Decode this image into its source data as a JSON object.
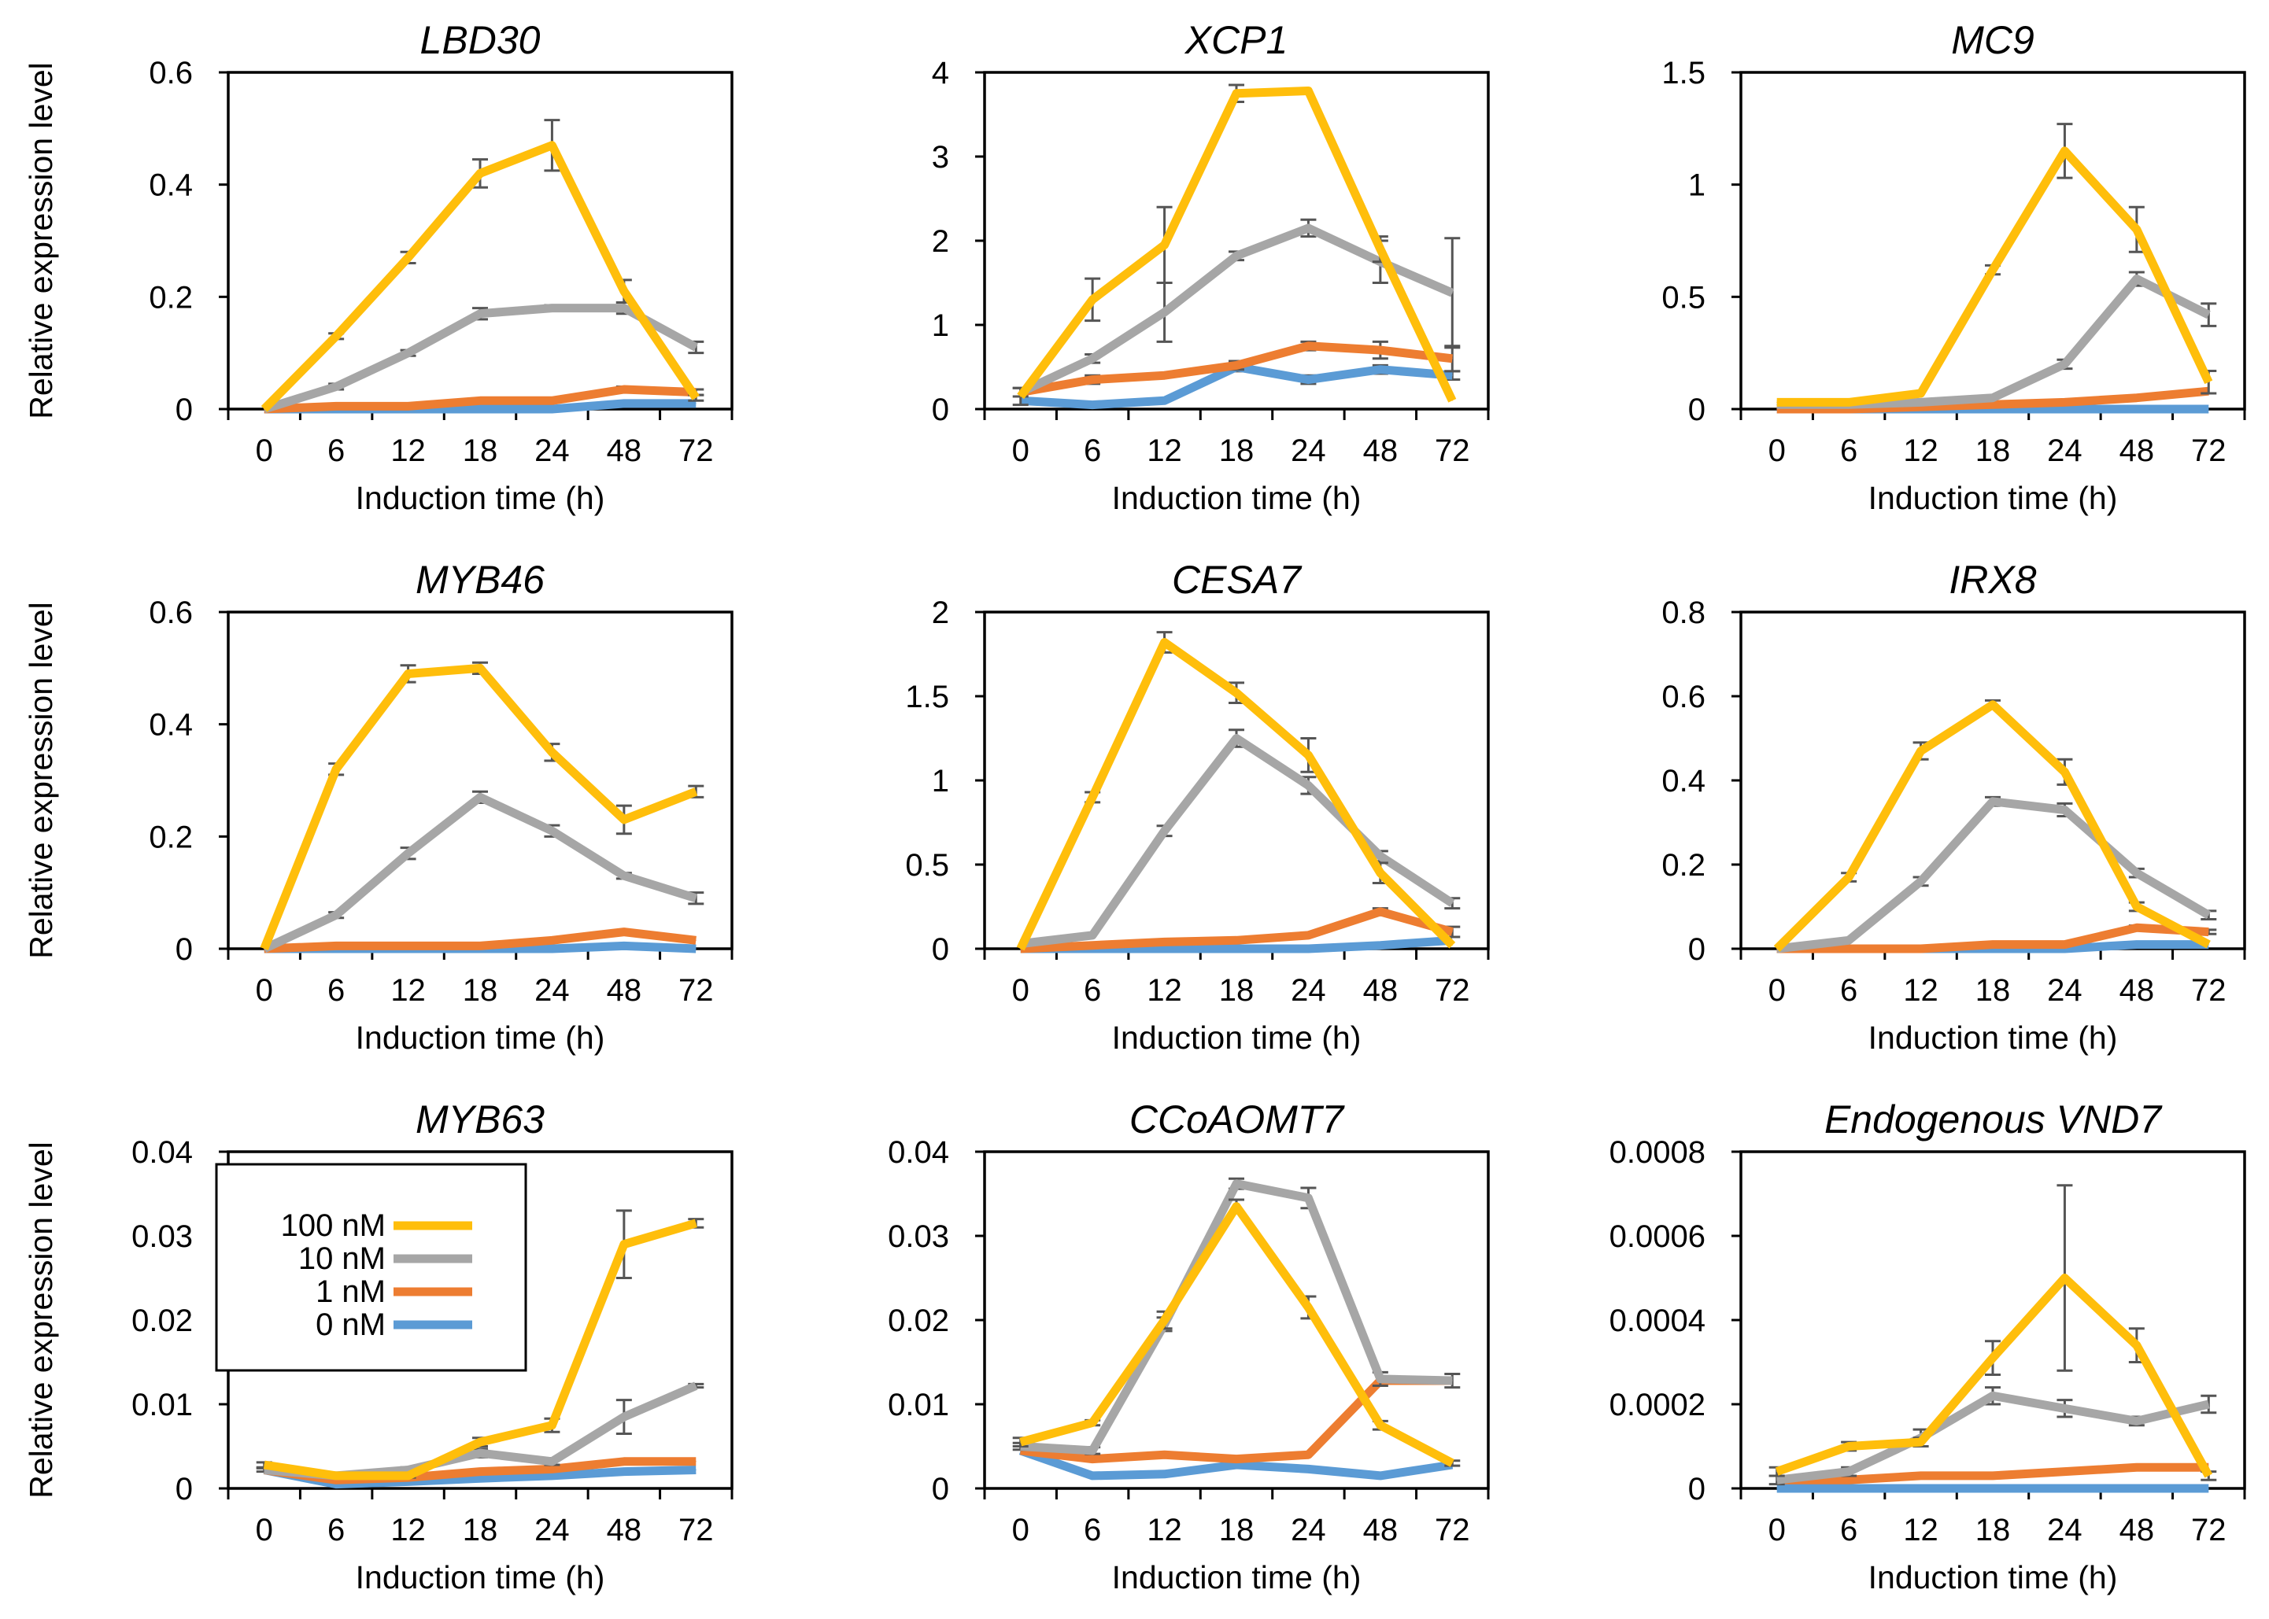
{
  "figure": {
    "ylabel": "Relative expression level",
    "xlabel": "Induction time (h)"
  },
  "legend": {
    "entries": [
      {
        "label": "100 nM",
        "color": "#FFBE0B"
      },
      {
        "label": "10 nM",
        "color": "#A6A6A6"
      },
      {
        "label": "1 nM",
        "color": "#ED7D31"
      },
      {
        "label": "0 nM",
        "color": "#5B9BD5"
      }
    ]
  },
  "chart_data": [
    {
      "type": "line",
      "title": "LBD30",
      "xlabel": "Induction time (h)",
      "ylabel": "Relative expression level",
      "categories": [
        "0",
        "6",
        "12",
        "18",
        "24",
        "48",
        "72"
      ],
      "ylim": [
        0,
        0.6
      ],
      "yticks": [
        0,
        0.2,
        0.4,
        0.6
      ],
      "ytick_labels": [
        "0",
        "0.2",
        "0.4",
        "0.6"
      ],
      "series": [
        {
          "name": "100 nM",
          "color": "#FFBE0B",
          "values": [
            0,
            0.13,
            0.27,
            0.42,
            0.47,
            0.21,
            0.02
          ],
          "errors": [
            0,
            0.005,
            0.01,
            0.025,
            0.045,
            0.02,
            0.005
          ]
        },
        {
          "name": "10 nM",
          "color": "#A6A6A6",
          "values": [
            0,
            0.04,
            0.1,
            0.17,
            0.18,
            0.18,
            0.11
          ],
          "errors": [
            0,
            0.005,
            0.005,
            0.01,
            0.005,
            0.01,
            0.01
          ]
        },
        {
          "name": "1 nM",
          "color": "#ED7D31",
          "values": [
            0,
            0.005,
            0.005,
            0.015,
            0.015,
            0.035,
            0.03
          ],
          "errors": [
            0,
            0,
            0,
            0,
            0,
            0.005,
            0.005
          ]
        },
        {
          "name": "0 nM",
          "color": "#5B9BD5",
          "values": [
            0,
            0,
            0,
            0,
            0,
            0.01,
            0.01
          ],
          "errors": [
            0,
            0,
            0,
            0,
            0,
            0,
            0
          ]
        }
      ]
    },
    {
      "type": "line",
      "title": "XCP1",
      "xlabel": "Induction time (h)",
      "ylabel": "",
      "categories": [
        "0",
        "6",
        "12",
        "18",
        "24",
        "48",
        "72"
      ],
      "ylim": [
        0,
        4
      ],
      "yticks": [
        0,
        1,
        2,
        3,
        4
      ],
      "ytick_labels": [
        "0",
        "1",
        "2",
        "3",
        "4"
      ],
      "series": [
        {
          "name": "100 nM",
          "color": "#FFBE0B",
          "values": [
            0.15,
            1.3,
            1.95,
            3.75,
            3.78,
            1.9,
            0.1
          ],
          "errors": [
            0.1,
            0.25,
            0.45,
            0.1,
            0,
            0.15,
            0
          ]
        },
        {
          "name": "10 nM",
          "color": "#A6A6A6",
          "values": [
            0.2,
            0.6,
            1.15,
            1.82,
            2.15,
            1.75,
            1.38
          ],
          "errors": [
            0.05,
            0.05,
            0.35,
            0.05,
            0.1,
            0.25,
            0.65
          ]
        },
        {
          "name": "1 nM",
          "color": "#ED7D31",
          "values": [
            0.2,
            0.35,
            0.4,
            0.52,
            0.75,
            0.7,
            0.6
          ],
          "errors": [
            0,
            0.05,
            0,
            0.05,
            0.05,
            0.1,
            0.15
          ]
        },
        {
          "name": "0 nM",
          "color": "#5B9BD5",
          "values": [
            0.1,
            0.05,
            0.1,
            0.5,
            0.35,
            0.47,
            0.4
          ],
          "errors": [
            0,
            0,
            0,
            0.05,
            0.05,
            0.05,
            0.05
          ]
        }
      ]
    },
    {
      "type": "line",
      "title": "MC9",
      "xlabel": "Induction time (h)",
      "ylabel": "",
      "categories": [
        "0",
        "6",
        "12",
        "18",
        "24",
        "48",
        "72"
      ],
      "ylim": [
        0,
        1.5
      ],
      "yticks": [
        0,
        0.5,
        1,
        1.5
      ],
      "ytick_labels": [
        "0",
        "0.5",
        "1",
        "1.5"
      ],
      "series": [
        {
          "name": "100 nM",
          "color": "#FFBE0B",
          "values": [
            0.03,
            0.03,
            0.07,
            0.62,
            1.15,
            0.8,
            0.12
          ],
          "errors": [
            0,
            0,
            0,
            0.02,
            0.12,
            0.1,
            0.05
          ]
        },
        {
          "name": "10 nM",
          "color": "#A6A6A6",
          "values": [
            0.02,
            0.02,
            0.03,
            0.05,
            0.2,
            0.58,
            0.42
          ],
          "errors": [
            0,
            0,
            0,
            0,
            0.02,
            0.03,
            0.05
          ]
        },
        {
          "name": "1 nM",
          "color": "#ED7D31",
          "values": [
            0,
            0,
            0.01,
            0.02,
            0.03,
            0.05,
            0.08
          ],
          "errors": [
            0,
            0,
            0,
            0,
            0,
            0,
            0
          ]
        },
        {
          "name": "0 nM",
          "color": "#5B9BD5",
          "values": [
            0,
            0,
            0,
            0,
            0,
            0,
            0
          ],
          "errors": [
            0,
            0,
            0,
            0,
            0,
            0,
            0
          ]
        }
      ]
    },
    {
      "type": "line",
      "title": "MYB46",
      "xlabel": "Induction time (h)",
      "ylabel": "Relative expression level",
      "categories": [
        "0",
        "6",
        "12",
        "18",
        "24",
        "48",
        "72"
      ],
      "ylim": [
        0,
        0.6
      ],
      "yticks": [
        0,
        0.2,
        0.4,
        0.6
      ],
      "ytick_labels": [
        "0",
        "0.2",
        "0.4",
        "0.6"
      ],
      "series": [
        {
          "name": "100 nM",
          "color": "#FFBE0B",
          "values": [
            0,
            0.32,
            0.49,
            0.5,
            0.35,
            0.23,
            0.28
          ],
          "errors": [
            0,
            0.01,
            0.015,
            0.01,
            0.015,
            0.025,
            0.01
          ]
        },
        {
          "name": "10 nM",
          "color": "#A6A6A6",
          "values": [
            0,
            0.06,
            0.17,
            0.27,
            0.21,
            0.13,
            0.09
          ],
          "errors": [
            0,
            0.005,
            0.01,
            0.01,
            0.01,
            0.005,
            0.01
          ]
        },
        {
          "name": "1 nM",
          "color": "#ED7D31",
          "values": [
            0,
            0.005,
            0.005,
            0.005,
            0.015,
            0.03,
            0.015
          ],
          "errors": [
            0,
            0,
            0,
            0,
            0,
            0,
            0
          ]
        },
        {
          "name": "0 nM",
          "color": "#5B9BD5",
          "values": [
            0,
            0,
            0,
            0,
            0,
            0.005,
            0
          ],
          "errors": [
            0,
            0,
            0,
            0,
            0,
            0,
            0
          ]
        }
      ]
    },
    {
      "type": "line",
      "title": "CESA7",
      "xlabel": "Induction time (h)",
      "ylabel": "",
      "categories": [
        "0",
        "6",
        "12",
        "18",
        "24",
        "48",
        "72"
      ],
      "ylim": [
        0,
        2
      ],
      "yticks": [
        0,
        0.5,
        1,
        1.5,
        2
      ],
      "ytick_labels": [
        "0",
        "0.5",
        "1",
        "1.5",
        "2"
      ],
      "series": [
        {
          "name": "100 nM",
          "color": "#FFBE0B",
          "values": [
            0,
            0.9,
            1.82,
            1.52,
            1.15,
            0.45,
            0.02
          ],
          "errors": [
            0,
            0.03,
            0.06,
            0.06,
            0.1,
            0.06,
            0
          ]
        },
        {
          "name": "10 nM",
          "color": "#A6A6A6",
          "values": [
            0.03,
            0.08,
            0.7,
            1.25,
            0.97,
            0.55,
            0.27
          ],
          "errors": [
            0,
            0,
            0.03,
            0.05,
            0.05,
            0.03,
            0.03
          ]
        },
        {
          "name": "1 nM",
          "color": "#ED7D31",
          "values": [
            0,
            0.02,
            0.04,
            0.05,
            0.08,
            0.22,
            0.1
          ],
          "errors": [
            0,
            0,
            0,
            0,
            0,
            0.02,
            0.03
          ]
        },
        {
          "name": "0 nM",
          "color": "#5B9BD5",
          "values": [
            0,
            0,
            0,
            0,
            0,
            0.02,
            0.05
          ],
          "errors": [
            0,
            0,
            0,
            0,
            0,
            0,
            0
          ]
        }
      ]
    },
    {
      "type": "line",
      "title": "IRX8",
      "xlabel": "Induction time (h)",
      "ylabel": "",
      "categories": [
        "0",
        "6",
        "12",
        "18",
        "24",
        "48",
        "72"
      ],
      "ylim": [
        0,
        0.8
      ],
      "yticks": [
        0,
        0.2,
        0.4,
        0.6,
        0.8
      ],
      "ytick_labels": [
        "0",
        "0.2",
        "0.4",
        "0.6",
        "0.8"
      ],
      "series": [
        {
          "name": "100 nM",
          "color": "#FFBE0B",
          "values": [
            0,
            0.17,
            0.47,
            0.58,
            0.42,
            0.1,
            0.01
          ],
          "errors": [
            0,
            0.01,
            0.02,
            0.01,
            0.03,
            0.01,
            0
          ]
        },
        {
          "name": "10 nM",
          "color": "#A6A6A6",
          "values": [
            0,
            0.02,
            0.16,
            0.35,
            0.33,
            0.18,
            0.08
          ],
          "errors": [
            0,
            0,
            0.01,
            0.01,
            0.015,
            0.01,
            0.01
          ]
        },
        {
          "name": "1 nM",
          "color": "#ED7D31",
          "values": [
            0,
            0,
            0,
            0.01,
            0.01,
            0.05,
            0.04
          ],
          "errors": [
            0,
            0,
            0,
            0,
            0,
            0.005,
            0.005
          ]
        },
        {
          "name": "0 nM",
          "color": "#5B9BD5",
          "values": [
            0,
            0,
            0,
            0,
            0,
            0.01,
            0.01
          ],
          "errors": [
            0,
            0,
            0,
            0,
            0,
            0,
            0
          ]
        }
      ]
    },
    {
      "type": "line",
      "title": "MYB63",
      "xlabel": "Induction time (h)",
      "ylabel": "Relative expression level",
      "categories": [
        "0",
        "6",
        "12",
        "18",
        "24",
        "48",
        "72"
      ],
      "ylim": [
        0,
        0.04
      ],
      "yticks": [
        0,
        0.01,
        0.02,
        0.03,
        0.04
      ],
      "ytick_labels": [
        "0",
        "0.01",
        "0.02",
        "0.03",
        "0.04"
      ],
      "series": [
        {
          "name": "100 nM",
          "color": "#FFBE0B",
          "values": [
            0.0028,
            0.0015,
            0.0015,
            0.0055,
            0.0075,
            0.029,
            0.0315
          ],
          "errors": [
            0.0003,
            0.0002,
            0.0002,
            0.0005,
            0.0008,
            0.004,
            0.0005
          ]
        },
        {
          "name": "10 nM",
          "color": "#A6A6A6",
          "values": [
            0.0022,
            0.0015,
            0.0022,
            0.0042,
            0.0032,
            0.0085,
            0.0122
          ],
          "errors": [
            0.0002,
            0.0002,
            0.0003,
            0.0005,
            0.0004,
            0.002,
            0.0002
          ]
        },
        {
          "name": "1 nM",
          "color": "#ED7D31",
          "values": [
            0.0022,
            0.001,
            0.0013,
            0.002,
            0.0023,
            0.0032,
            0.0032
          ],
          "errors": [
            0,
            0,
            0,
            0,
            0,
            0,
            0
          ]
        },
        {
          "name": "0 nM",
          "color": "#5B9BD5",
          "values": [
            0.0022,
            0.0005,
            0.0008,
            0.0012,
            0.0015,
            0.002,
            0.0022
          ],
          "errors": [
            0,
            0,
            0,
            0,
            0,
            0,
            0
          ]
        }
      ]
    },
    {
      "type": "line",
      "title": "CCoAOMT7",
      "xlabel": "Induction time (h)",
      "ylabel": "",
      "categories": [
        "0",
        "6",
        "12",
        "18",
        "24",
        "48",
        "72"
      ],
      "ylim": [
        0,
        0.04
      ],
      "yticks": [
        0,
        0.01,
        0.02,
        0.03,
        0.04
      ],
      "ytick_labels": [
        "0",
        "0.01",
        "0.02",
        "0.03",
        "0.04"
      ],
      "series": [
        {
          "name": "100 nM",
          "color": "#FFBE0B",
          "values": [
            0.0055,
            0.0078,
            0.02,
            0.0335,
            0.0215,
            0.0075,
            0.003
          ],
          "errors": [
            0.0005,
            0.0003,
            0.001,
            0.0008,
            0.0013,
            0.0005,
            0.0003
          ]
        },
        {
          "name": "10 nM",
          "color": "#A6A6A6",
          "values": [
            0.005,
            0.0045,
            0.0195,
            0.0362,
            0.0345,
            0.013,
            0.0128
          ],
          "errors": [
            0.0004,
            0.0004,
            0.0008,
            0.0006,
            0.0012,
            0.0008,
            0.0008
          ]
        },
        {
          "name": "1 nM",
          "color": "#ED7D31",
          "values": [
            0.0045,
            0.0035,
            0.004,
            0.0035,
            0.004,
            0.0128,
            0.0128
          ],
          "errors": [
            0,
            0,
            0,
            0,
            0,
            0,
            0
          ]
        },
        {
          "name": "0 nM",
          "color": "#5B9BD5",
          "values": [
            0.0045,
            0.0015,
            0.0017,
            0.0028,
            0.0023,
            0.0015,
            0.0028
          ],
          "errors": [
            0,
            0,
            0,
            0,
            0,
            0,
            0
          ]
        }
      ]
    },
    {
      "type": "line",
      "title": "Endogenous VND7",
      "xlabel": "Induction time (h)",
      "ylabel": "",
      "categories": [
        "0",
        "6",
        "12",
        "18",
        "24",
        "48",
        "72"
      ],
      "ylim": [
        0,
        0.0008
      ],
      "yticks": [
        0,
        0.0002,
        0.0004,
        0.0006,
        0.0008
      ],
      "ytick_labels": [
        "0",
        "0.0002",
        "0.0004",
        "0.0006",
        "0.0008"
      ],
      "series": [
        {
          "name": "100 nM",
          "color": "#FFBE0B",
          "values": [
            4e-05,
            0.0001,
            0.00011,
            0.00031,
            0.0005,
            0.00034,
            3e-05
          ],
          "errors": [
            1e-05,
            1e-05,
            1e-05,
            4e-05,
            0.00022,
            4e-05,
            1e-05
          ]
        },
        {
          "name": "10 nM",
          "color": "#A6A6A6",
          "values": [
            2e-05,
            4e-05,
            0.00012,
            0.00022,
            0.00019,
            0.00016,
            0.0002
          ],
          "errors": [
            1e-05,
            1e-05,
            2e-05,
            2e-05,
            2e-05,
            1e-05,
            2e-05
          ]
        },
        {
          "name": "1 nM",
          "color": "#ED7D31",
          "values": [
            2e-05,
            2e-05,
            3e-05,
            3e-05,
            4e-05,
            5e-05,
            5e-05
          ],
          "errors": [
            0,
            0,
            0,
            0,
            0,
            0,
            0
          ]
        },
        {
          "name": "0 nM",
          "color": "#5B9BD5",
          "values": [
            0,
            0,
            0,
            0,
            0,
            0,
            0
          ],
          "errors": [
            0,
            0,
            0,
            0,
            0,
            0,
            0
          ]
        }
      ]
    }
  ]
}
